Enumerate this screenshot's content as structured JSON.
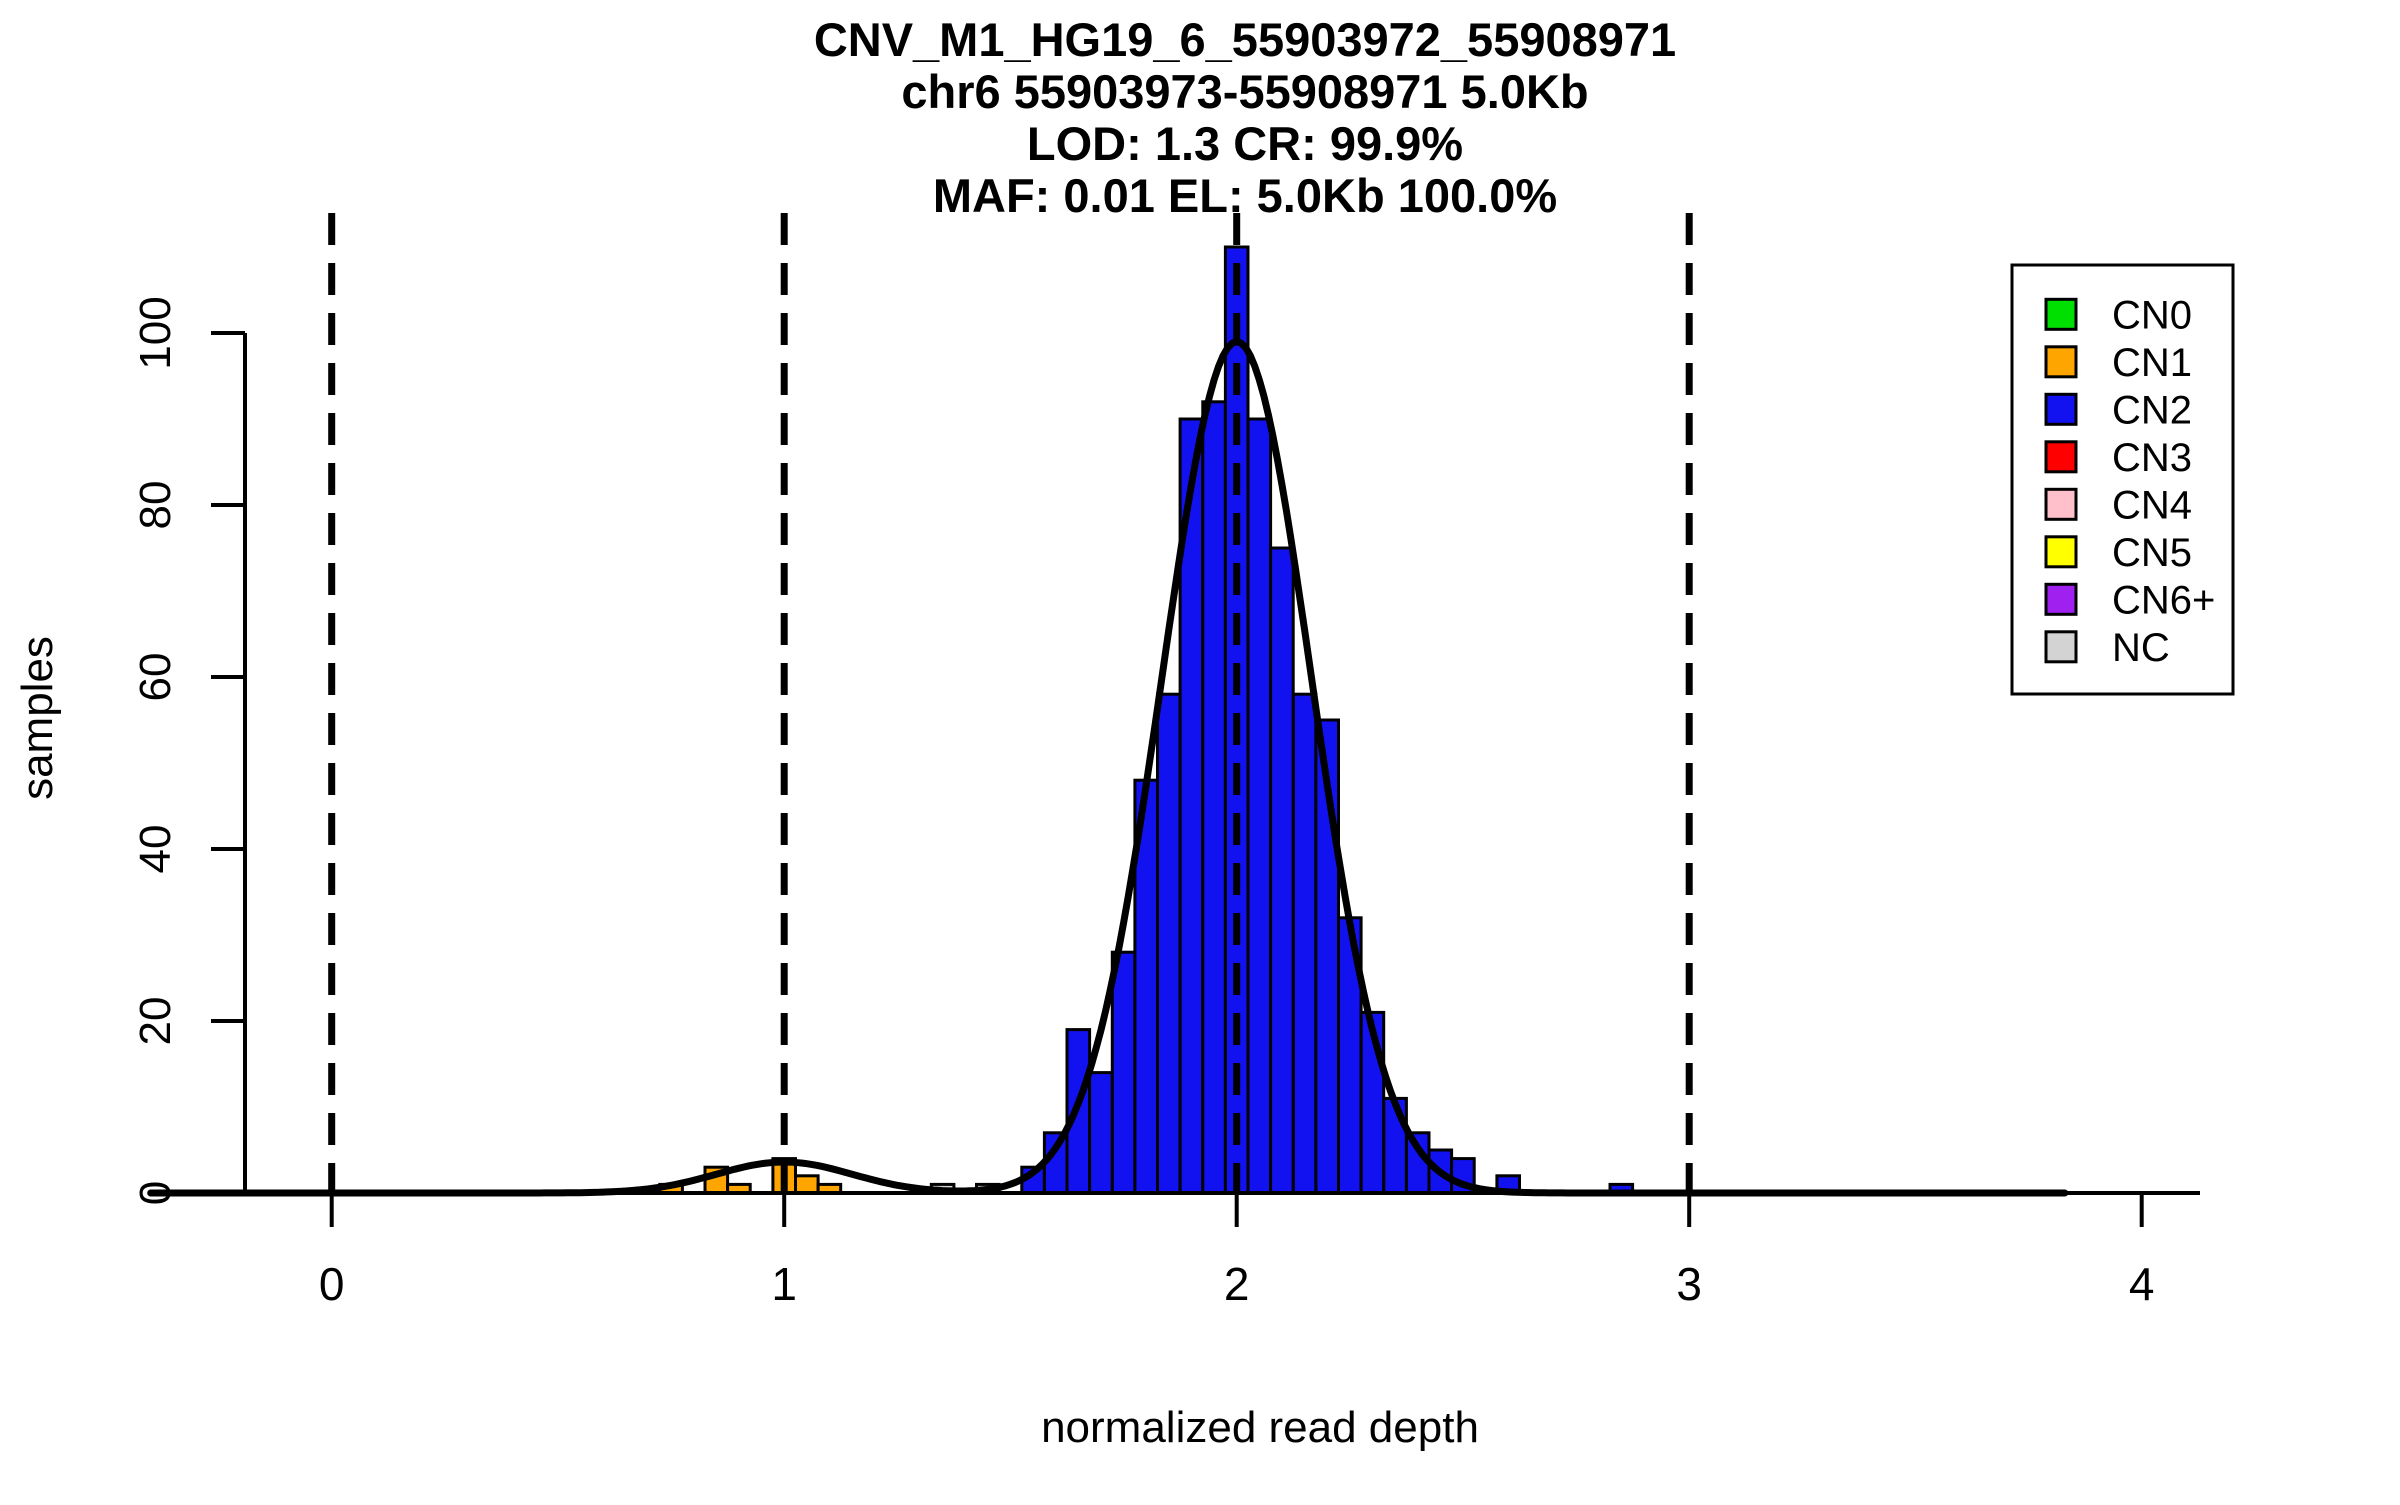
{
  "title": {
    "lines": [
      "CNV_M1_HG19_6_55903972_55908971",
      "chr6 55903973-55908971 5.0Kb",
      "LOD: 1.3 CR: 99.9%",
      "MAF: 0.01 EL: 5.0Kb 100.0%"
    ]
  },
  "chart_data": {
    "type": "bar",
    "subtype": "histogram-with-density-fit",
    "title": "CNV_M1_HG19_6_55903972_55908971 chr6 55903973-55908971 5.0Kb LOD: 1.3 CR: 99.9% MAF: 0.01 EL: 5.0Kb 100.0%",
    "xlabel": "normalized read depth",
    "ylabel": "samples",
    "xlim": [
      -0.4,
      4.15
    ],
    "ylim": [
      0,
      100
    ],
    "x_ticks": [
      0,
      1,
      2,
      3,
      4
    ],
    "y_ticks": [
      0,
      20,
      40,
      60,
      80,
      100
    ],
    "grid": false,
    "bin_width": 0.05,
    "dashed_guides_x": [
      0,
      1,
      2,
      3
    ],
    "bars": [
      {
        "x": 0.75,
        "count": 1,
        "cn": "CN1"
      },
      {
        "x": 0.85,
        "count": 3,
        "cn": "CN1"
      },
      {
        "x": 0.9,
        "count": 1,
        "cn": "CN1"
      },
      {
        "x": 1.0,
        "count": 4,
        "cn": "CN1"
      },
      {
        "x": 1.05,
        "count": 2,
        "cn": "CN1"
      },
      {
        "x": 1.1,
        "count": 1,
        "cn": "CN1"
      },
      {
        "x": 1.35,
        "count": 1,
        "cn": "NC"
      },
      {
        "x": 1.45,
        "count": 1,
        "cn": "NC"
      },
      {
        "x": 1.55,
        "count": 3,
        "cn": "CN2"
      },
      {
        "x": 1.6,
        "count": 7,
        "cn": "CN2"
      },
      {
        "x": 1.65,
        "count": 19,
        "cn": "CN2"
      },
      {
        "x": 1.7,
        "count": 14,
        "cn": "CN2"
      },
      {
        "x": 1.75,
        "count": 28,
        "cn": "CN2"
      },
      {
        "x": 1.8,
        "count": 48,
        "cn": "CN2"
      },
      {
        "x": 1.85,
        "count": 58,
        "cn": "CN2"
      },
      {
        "x": 1.9,
        "count": 90,
        "cn": "CN2"
      },
      {
        "x": 1.95,
        "count": 92,
        "cn": "CN2"
      },
      {
        "x": 2.0,
        "count": 110,
        "cn": "CN2"
      },
      {
        "x": 2.05,
        "count": 90,
        "cn": "CN2"
      },
      {
        "x": 2.1,
        "count": 75,
        "cn": "CN2"
      },
      {
        "x": 2.15,
        "count": 58,
        "cn": "CN2"
      },
      {
        "x": 2.2,
        "count": 55,
        "cn": "CN2"
      },
      {
        "x": 2.25,
        "count": 32,
        "cn": "CN2"
      },
      {
        "x": 2.3,
        "count": 21,
        "cn": "CN2"
      },
      {
        "x": 2.35,
        "count": 11,
        "cn": "CN2"
      },
      {
        "x": 2.4,
        "count": 7,
        "cn": "CN2"
      },
      {
        "x": 2.45,
        "count": 5,
        "cn": "CN2"
      },
      {
        "x": 2.5,
        "count": 4,
        "cn": "CN2"
      },
      {
        "x": 2.6,
        "count": 2,
        "cn": "CN2"
      },
      {
        "x": 2.85,
        "count": 1,
        "cn": "CN2"
      }
    ],
    "fit_curves": [
      {
        "mean": 2.0,
        "sd": 0.165,
        "amplitude": 99
      },
      {
        "mean": 1.0,
        "sd": 0.15,
        "amplitude": 3.6
      }
    ],
    "curve_x_range": [
      -0.4,
      3.83
    ],
    "legend_position": "top-right",
    "legend_items": [
      {
        "label": "CN0"
      },
      {
        "label": "CN1"
      },
      {
        "label": "CN2"
      },
      {
        "label": "CN3"
      },
      {
        "label": "CN4"
      },
      {
        "label": "CN5"
      },
      {
        "label": "CN6+"
      },
      {
        "label": "NC"
      }
    ],
    "colors": {
      "CN0": "#00E000",
      "CN1": "#FFA500",
      "CN2": "#1212F0",
      "CN3": "#FF0000",
      "CN4": "#FFC0CB",
      "CN5": "#FFFF00",
      "CN6+": "#A020F0",
      "NC": "#D3D3D3"
    },
    "curve_color": "#000000",
    "axis_color": "#000000"
  }
}
